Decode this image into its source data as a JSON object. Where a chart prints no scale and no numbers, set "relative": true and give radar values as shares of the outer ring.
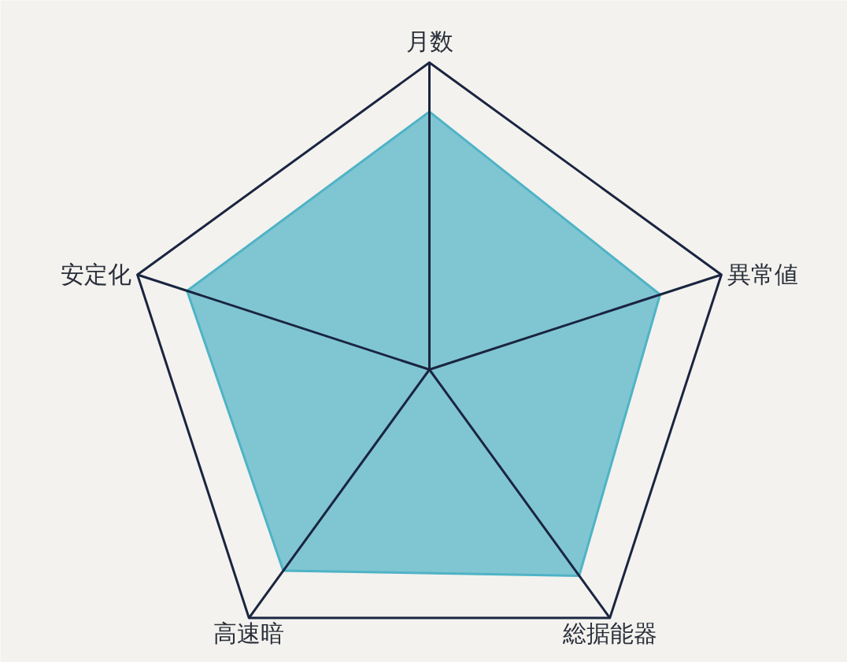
{
  "chart_data": {
    "type": "radar",
    "relative": true,
    "categories": [
      "月数",
      "異常値",
      "総据能器",
      "高速暗",
      "安定化"
    ],
    "series": [
      {
        "color": "#4fb3c6",
        "values": [
          0.84,
          0.79,
          0.83,
          0.81,
          0.83
        ]
      }
    ]
  }
}
